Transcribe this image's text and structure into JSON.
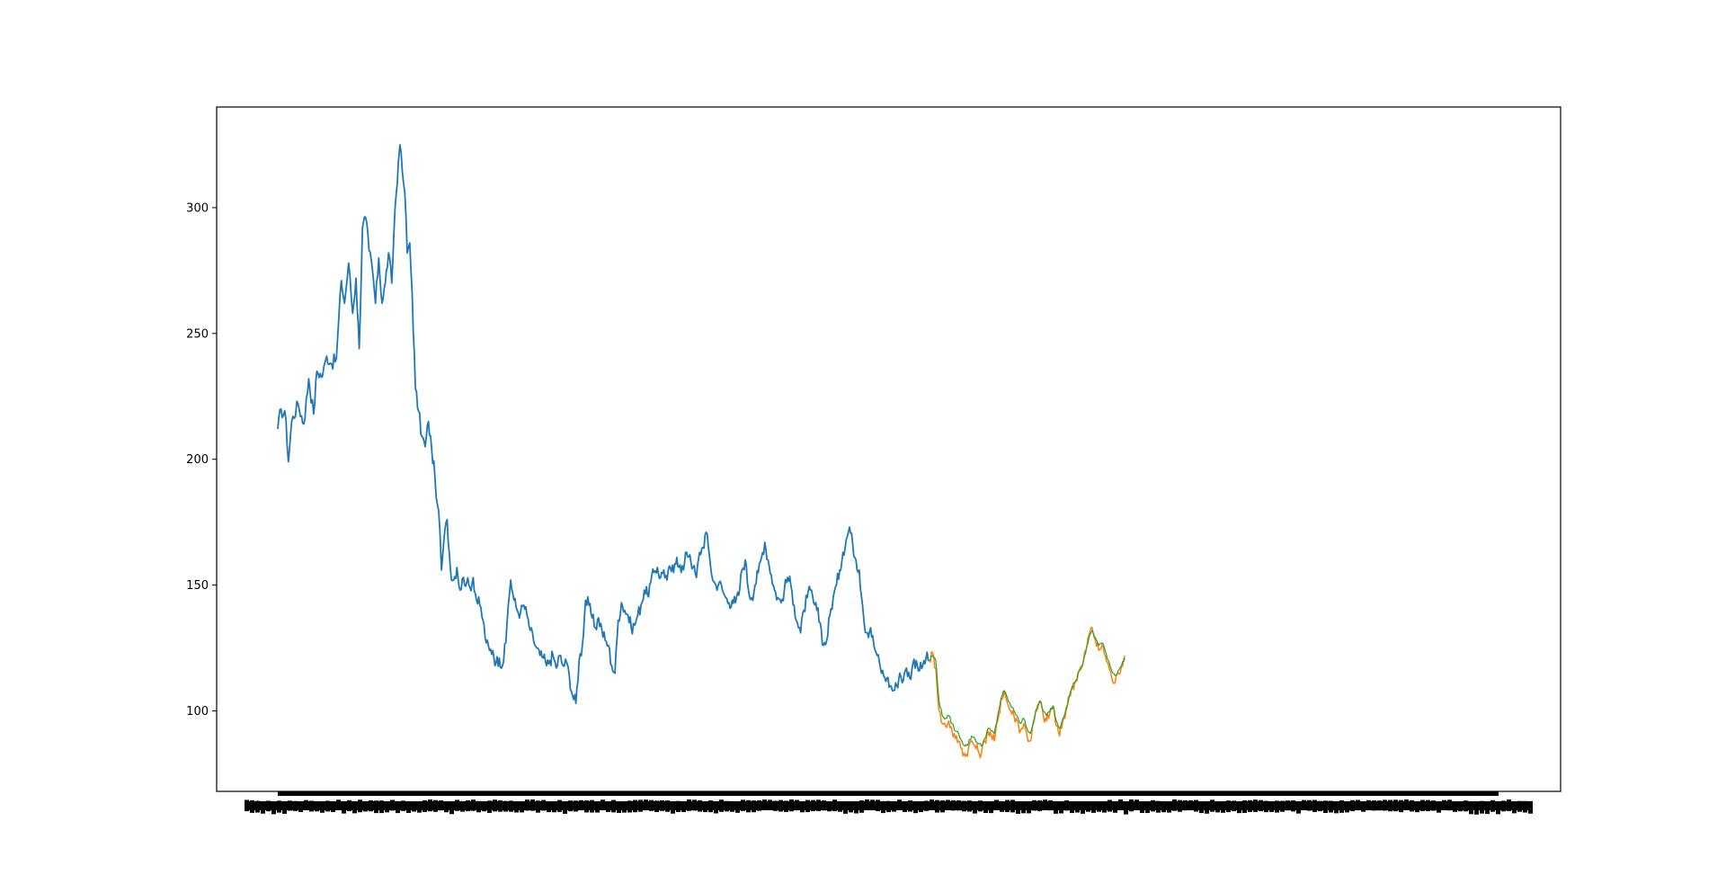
{
  "chart_data": {
    "type": "line",
    "title": "",
    "xlabel": "",
    "ylabel": "",
    "ylim": [
      68,
      340
    ],
    "y_ticks": [
      100,
      150,
      200,
      250,
      300
    ],
    "x_index_range": [
      0,
      1499
    ],
    "x_tick_labels_illegible": true,
    "legend": "none",
    "grid": false,
    "colors": {
      "train": "#1f77b4",
      "actual": "#ff7f0e",
      "predicted": "#2ca02c",
      "axes": "#000000",
      "background": "#ffffff"
    },
    "series": [
      {
        "key": "train",
        "color": "#1f77b4",
        "points": [
          [
            0,
            212
          ],
          [
            4,
            220
          ],
          [
            10,
            216
          ],
          [
            13,
            199
          ],
          [
            17,
            215
          ],
          [
            25,
            222
          ],
          [
            32,
            214
          ],
          [
            38,
            232
          ],
          [
            44,
            218
          ],
          [
            48,
            235
          ],
          [
            55,
            233
          ],
          [
            60,
            241
          ],
          [
            66,
            238
          ],
          [
            72,
            240
          ],
          [
            78,
            271
          ],
          [
            82,
            262
          ],
          [
            87,
            278
          ],
          [
            92,
            258
          ],
          [
            96,
            272
          ],
          [
            100,
            244
          ],
          [
            104,
            292
          ],
          [
            108,
            296
          ],
          [
            112,
            283
          ],
          [
            116,
            276
          ],
          [
            120,
            262
          ],
          [
            124,
            280
          ],
          [
            128,
            262
          ],
          [
            132,
            270
          ],
          [
            136,
            282
          ],
          [
            140,
            270
          ],
          [
            144,
            300
          ],
          [
            148,
            318
          ],
          [
            150,
            325
          ],
          [
            153,
            314
          ],
          [
            156,
            306
          ],
          [
            159,
            282
          ],
          [
            162,
            286
          ],
          [
            165,
            266
          ],
          [
            169,
            228
          ],
          [
            173,
            219
          ],
          [
            177,
            209
          ],
          [
            181,
            205
          ],
          [
            185,
            215
          ],
          [
            189,
            204
          ],
          [
            193,
            193
          ],
          [
            196,
            182
          ],
          [
            199,
            172
          ],
          [
            201,
            156
          ],
          [
            204,
            168
          ],
          [
            208,
            176
          ],
          [
            212,
            156
          ],
          [
            216,
            152
          ],
          [
            220,
            157
          ],
          [
            224,
            148
          ],
          [
            228,
            153
          ],
          [
            232,
            151
          ],
          [
            236,
            149
          ],
          [
            240,
            153
          ],
          [
            244,
            144
          ],
          [
            248,
            142
          ],
          [
            252,
            136
          ],
          [
            256,
            127
          ],
          [
            260,
            124
          ],
          [
            264,
            124
          ],
          [
            268,
            119
          ],
          [
            272,
            121
          ],
          [
            276,
            118
          ],
          [
            280,
            127
          ],
          [
            283,
            142
          ],
          [
            286,
            152
          ],
          [
            290,
            144
          ],
          [
            294,
            140
          ],
          [
            298,
            139
          ],
          [
            302,
            142
          ],
          [
            306,
            138
          ],
          [
            310,
            132
          ],
          [
            314,
            128
          ],
          [
            318,
            125
          ],
          [
            322,
            122
          ],
          [
            326,
            121
          ],
          [
            330,
            118
          ],
          [
            334,
            120
          ],
          [
            338,
            122
          ],
          [
            342,
            117
          ],
          [
            346,
            122
          ],
          [
            350,
            118
          ],
          [
            355,
            119
          ],
          [
            358,
            114
          ],
          [
            362,
            106
          ],
          [
            366,
            103
          ],
          [
            370,
            120
          ],
          [
            374,
            126
          ],
          [
            378,
            144
          ],
          [
            382,
            142
          ],
          [
            386,
            137
          ],
          [
            390,
            133
          ],
          [
            394,
            137
          ],
          [
            398,
            132
          ],
          [
            402,
            128
          ],
          [
            406,
            126
          ],
          [
            410,
            118
          ],
          [
            414,
            115
          ],
          [
            418,
            136
          ],
          [
            422,
            143
          ],
          [
            426,
            140
          ],
          [
            430,
            138
          ],
          [
            434,
            133
          ],
          [
            438,
            134
          ],
          [
            442,
            138
          ],
          [
            446,
            142
          ],
          [
            450,
            148
          ],
          [
            454,
            146
          ],
          [
            458,
            151
          ],
          [
            462,
            155
          ],
          [
            466,
            157
          ],
          [
            470,
            153
          ],
          [
            474,
            156
          ],
          [
            478,
            152
          ],
          [
            482,
            157
          ],
          [
            486,
            155
          ],
          [
            490,
            161
          ],
          [
            494,
            158
          ],
          [
            498,
            156
          ],
          [
            502,
            163
          ],
          [
            506,
            162
          ],
          [
            510,
            157
          ],
          [
            514,
            153
          ],
          [
            518,
            163
          ],
          [
            522,
            165
          ],
          [
            526,
            171
          ],
          [
            530,
            162
          ],
          [
            534,
            152
          ],
          [
            538,
            150
          ],
          [
            542,
            151
          ],
          [
            546,
            148
          ],
          [
            550,
            145
          ],
          [
            554,
            143
          ],
          [
            558,
            144
          ],
          [
            562,
            143
          ],
          [
            566,
            146
          ],
          [
            570,
            156
          ],
          [
            574,
            160
          ],
          [
            578,
            148
          ],
          [
            582,
            145
          ],
          [
            586,
            150
          ],
          [
            590,
            155
          ],
          [
            594,
            161
          ],
          [
            598,
            167
          ],
          [
            602,
            160
          ],
          [
            606,
            154
          ],
          [
            610,
            148
          ],
          [
            614,
            145
          ],
          [
            618,
            143
          ],
          [
            622,
            148
          ],
          [
            626,
            153
          ],
          [
            630,
            150
          ],
          [
            634,
            142
          ],
          [
            638,
            135
          ],
          [
            642,
            131
          ],
          [
            646,
            140
          ],
          [
            650,
            145
          ],
          [
            654,
            148
          ],
          [
            658,
            143
          ],
          [
            662,
            140
          ],
          [
            666,
            135
          ],
          [
            670,
            126
          ],
          [
            674,
            128
          ],
          [
            678,
            138
          ],
          [
            682,
            145
          ],
          [
            686,
            150
          ],
          [
            690,
            156
          ],
          [
            694,
            163
          ],
          [
            698,
            168
          ],
          [
            702,
            173
          ],
          [
            706,
            166
          ],
          [
            710,
            160
          ],
          [
            714,
            156
          ],
          [
            718,
            142
          ],
          [
            720,
            135
          ],
          [
            724,
            131
          ],
          [
            728,
            133
          ],
          [
            732,
            126
          ],
          [
            736,
            122
          ],
          [
            740,
            117
          ],
          [
            744,
            114
          ],
          [
            748,
            113
          ],
          [
            752,
            110
          ],
          [
            756,
            108
          ],
          [
            760,
            110
          ],
          [
            764,
            115
          ],
          [
            768,
            112
          ],
          [
            772,
            117
          ],
          [
            776,
            113
          ],
          [
            780,
            119
          ],
          [
            784,
            120
          ],
          [
            788,
            116
          ],
          [
            792,
            118
          ],
          [
            796,
            121
          ],
          [
            800,
            120
          ]
        ]
      },
      {
        "key": "actual",
        "color": "#ff7f0e",
        "points": [
          [
            800,
            120
          ],
          [
            804,
            123
          ],
          [
            808,
            117
          ],
          [
            812,
            100
          ],
          [
            816,
            95
          ],
          [
            820,
            94
          ],
          [
            824,
            96
          ],
          [
            828,
            92
          ],
          [
            832,
            89
          ],
          [
            836,
            88
          ],
          [
            840,
            85
          ],
          [
            844,
            82
          ],
          [
            848,
            85
          ],
          [
            852,
            88
          ],
          [
            856,
            86
          ],
          [
            860,
            84
          ],
          [
            864,
            83
          ],
          [
            868,
            88
          ],
          [
            872,
            92
          ],
          [
            876,
            90
          ],
          [
            880,
            88
          ],
          [
            884,
            96
          ],
          [
            888,
            104
          ],
          [
            892,
            108
          ],
          [
            896,
            103
          ],
          [
            900,
            100
          ],
          [
            904,
            98
          ],
          [
            908,
            96
          ],
          [
            912,
            92
          ],
          [
            916,
            95
          ],
          [
            920,
            90
          ],
          [
            924,
            88
          ],
          [
            928,
            95
          ],
          [
            932,
            100
          ],
          [
            936,
            104
          ],
          [
            940,
            98
          ],
          [
            944,
            96
          ],
          [
            948,
            99
          ],
          [
            952,
            102
          ],
          [
            956,
            94
          ],
          [
            960,
            90
          ],
          [
            964,
            96
          ],
          [
            968,
            100
          ],
          [
            972,
            106
          ],
          [
            976,
            110
          ],
          [
            980,
            112
          ],
          [
            984,
            116
          ],
          [
            988,
            118
          ],
          [
            992,
            124
          ],
          [
            996,
            130
          ],
          [
            1000,
            133
          ],
          [
            1004,
            128
          ],
          [
            1008,
            124
          ],
          [
            1012,
            126
          ],
          [
            1016,
            122
          ],
          [
            1020,
            118
          ],
          [
            1024,
            113
          ],
          [
            1028,
            111
          ],
          [
            1032,
            115
          ],
          [
            1036,
            118
          ],
          [
            1040,
            122
          ]
        ]
      },
      {
        "key": "predicted",
        "color": "#2ca02c",
        "points": [
          [
            800,
            120
          ],
          [
            804,
            122
          ],
          [
            808,
            120
          ],
          [
            812,
            104
          ],
          [
            816,
            98
          ],
          [
            820,
            97
          ],
          [
            824,
            98
          ],
          [
            828,
            95
          ],
          [
            832,
            92
          ],
          [
            836,
            91
          ],
          [
            840,
            88
          ],
          [
            844,
            86
          ],
          [
            848,
            87
          ],
          [
            852,
            90
          ],
          [
            856,
            89
          ],
          [
            860,
            87
          ],
          [
            864,
            86
          ],
          [
            868,
            89
          ],
          [
            872,
            93
          ],
          [
            876,
            92
          ],
          [
            880,
            91
          ],
          [
            884,
            98
          ],
          [
            888,
            105
          ],
          [
            892,
            108
          ],
          [
            896,
            105
          ],
          [
            900,
            102
          ],
          [
            904,
            100
          ],
          [
            908,
            98
          ],
          [
            912,
            95
          ],
          [
            916,
            97
          ],
          [
            920,
            93
          ],
          [
            924,
            91
          ],
          [
            928,
            96
          ],
          [
            932,
            101
          ],
          [
            936,
            104
          ],
          [
            940,
            100
          ],
          [
            944,
            98
          ],
          [
            948,
            100
          ],
          [
            952,
            102
          ],
          [
            956,
            96
          ],
          [
            960,
            93
          ],
          [
            964,
            97
          ],
          [
            968,
            101
          ],
          [
            972,
            106
          ],
          [
            976,
            110
          ],
          [
            980,
            112
          ],
          [
            984,
            116
          ],
          [
            988,
            118
          ],
          [
            992,
            123
          ],
          [
            996,
            129
          ],
          [
            1000,
            132
          ],
          [
            1004,
            129
          ],
          [
            1008,
            126
          ],
          [
            1012,
            127
          ],
          [
            1016,
            124
          ],
          [
            1020,
            120
          ],
          [
            1024,
            116
          ],
          [
            1028,
            114
          ],
          [
            1032,
            116
          ],
          [
            1036,
            118
          ],
          [
            1040,
            121
          ]
        ]
      }
    ]
  }
}
